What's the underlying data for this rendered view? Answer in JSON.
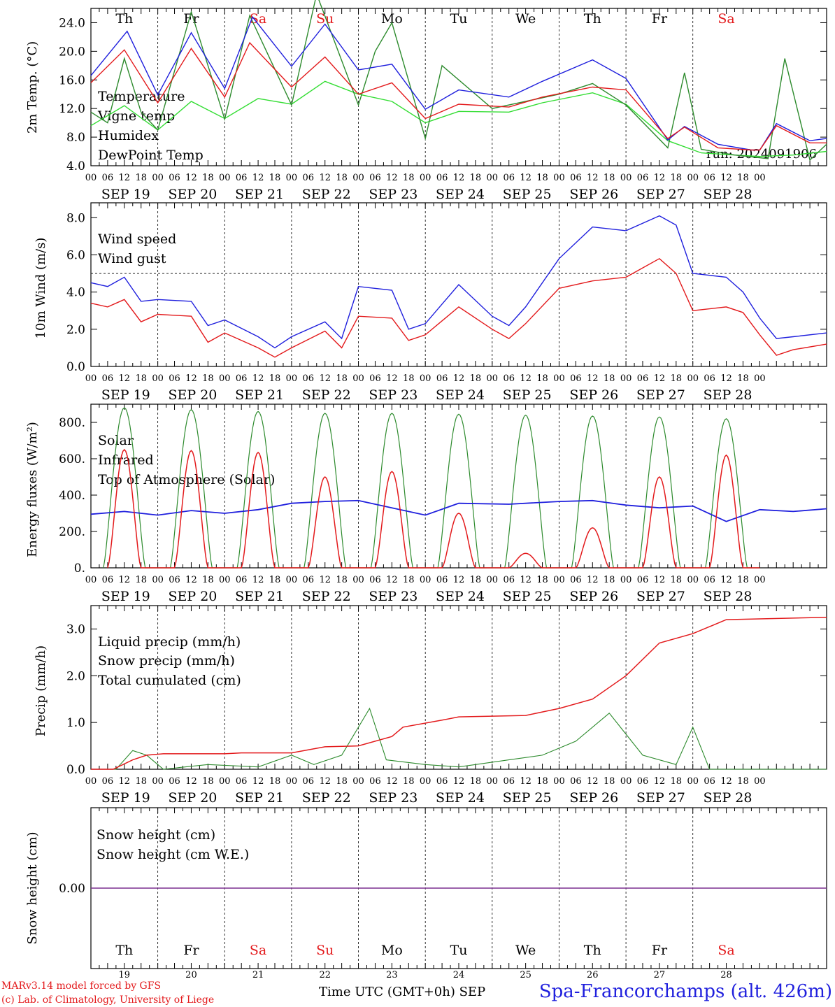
{
  "days": [
    {
      "abbr": "Th",
      "date": "SEP 19",
      "num": "19",
      "weekend": false
    },
    {
      "abbr": "Fr",
      "date": "SEP 20",
      "num": "20",
      "weekend": false
    },
    {
      "abbr": "Sa",
      "date": "SEP 21",
      "num": "21",
      "weekend": true
    },
    {
      "abbr": "Su",
      "date": "SEP 22",
      "num": "22",
      "weekend": true
    },
    {
      "abbr": "Mo",
      "date": "SEP 23",
      "num": "23",
      "weekend": false
    },
    {
      "abbr": "Tu",
      "date": "SEP 24",
      "num": "24",
      "weekend": false
    },
    {
      "abbr": "We",
      "date": "SEP 25",
      "num": "25",
      "weekend": false
    },
    {
      "abbr": "Th",
      "date": "SEP 26",
      "num": "26",
      "weekend": false
    },
    {
      "abbr": "Fr",
      "date": "SEP 27",
      "num": "27",
      "weekend": false
    },
    {
      "abbr": "Sa",
      "date": "SEP 28",
      "num": "28",
      "weekend": true
    }
  ],
  "hour_labels": [
    "00",
    "06",
    "12",
    "18"
  ],
  "colors": {
    "red": "#e31a1c",
    "darkgreen": "#2e8b2e",
    "blue": "#1f1fdd",
    "lightgreen": "#33dd33",
    "snow": "#7a2f8f"
  },
  "footer": {
    "credit_line1": "MARv3.14 model forced by GFS",
    "credit_line2": "(c) Lab. of Climatology, University of Liege",
    "time_label": "Time UTC (GMT+0h) SEP",
    "station": "Spa-Francorchamps (alt. 426m)"
  },
  "chart_data": [
    {
      "type": "line",
      "ylabel": "2m Temp. (°C)",
      "yticks": [
        "4.0",
        "8.0",
        "12.0",
        "16.0",
        "20.0",
        "24.0"
      ],
      "ylim": [
        4,
        26
      ],
      "run_label": "run: 2024091906",
      "legend": [
        "Temperature",
        "Vigne temp",
        "Humidex",
        "DewPoint Temp"
      ],
      "series": [
        {
          "name": "Temperature",
          "color": "red",
          "points": [
            [
              0,
              15.6
            ],
            [
              12,
              20.2
            ],
            [
              24,
              12.8
            ],
            [
              36,
              20.4
            ],
            [
              48,
              13.6
            ],
            [
              57,
              21.2
            ],
            [
              72,
              15.0
            ],
            [
              84,
              19.2
            ],
            [
              96,
              14.0
            ],
            [
              108,
              15.6
            ],
            [
              120,
              10.6
            ],
            [
              132,
              12.6
            ],
            [
              150,
              12.2
            ],
            [
              162,
              13.6
            ],
            [
              180,
              15.0
            ],
            [
              192,
              14.6
            ],
            [
              207,
              7.8
            ],
            [
              213,
              9.4
            ],
            [
              225,
              6.5
            ],
            [
              237,
              6.2
            ],
            [
              240,
              6.2
            ],
            [
              246,
              9.6
            ],
            [
              258,
              7.2
            ],
            [
              264,
              7.2
            ]
          ]
        },
        {
          "name": "Vigne temp",
          "color": "darkgreen",
          "points": [
            [
              0,
              11.5
            ],
            [
              6,
              10.0
            ],
            [
              12,
              19.0
            ],
            [
              18,
              11.5
            ],
            [
              24,
              9.0
            ],
            [
              36,
              25.5
            ],
            [
              48,
              10.5
            ],
            [
              57,
              25.0
            ],
            [
              72,
              12.5
            ],
            [
              81,
              28.0
            ],
            [
              96,
              12.5
            ],
            [
              102,
              20.0
            ],
            [
              108,
              24.0
            ],
            [
              120,
              7.8
            ],
            [
              126,
              18.0
            ],
            [
              144,
              12.0
            ],
            [
              168,
              14.0
            ],
            [
              180,
              15.5
            ],
            [
              192,
              12.5
            ],
            [
              207,
              6.5
            ],
            [
              213,
              17.0
            ],
            [
              219,
              6.3
            ],
            [
              231,
              5.5
            ],
            [
              243,
              5.0
            ],
            [
              249,
              19.0
            ],
            [
              258,
              4.8
            ],
            [
              264,
              7.0
            ]
          ]
        },
        {
          "name": "Humidex",
          "color": "blue",
          "points": [
            [
              0,
              16.6
            ],
            [
              13,
              22.8
            ],
            [
              24,
              13.9
            ],
            [
              36,
              22.6
            ],
            [
              48,
              14.8
            ],
            [
              58,
              24.8
            ],
            [
              72,
              17.9
            ],
            [
              84,
              23.8
            ],
            [
              96,
              17.4
            ],
            [
              108,
              18.2
            ],
            [
              120,
              11.9
            ],
            [
              132,
              14.6
            ],
            [
              150,
              13.6
            ],
            [
              162,
              15.8
            ],
            [
              180,
              18.8
            ],
            [
              192,
              16.2
            ],
            [
              207,
              7.6
            ],
            [
              213,
              9.5
            ],
            [
              225,
              7.0
            ],
            [
              237,
              6.2
            ],
            [
              240,
              6.2
            ],
            [
              246,
              9.9
            ],
            [
              258,
              7.5
            ],
            [
              264,
              7.8
            ]
          ]
        },
        {
          "name": "DewPoint Temp",
          "color": "lightgreen",
          "points": [
            [
              0,
              9.6
            ],
            [
              12,
              12.4
            ],
            [
              24,
              9.0
            ],
            [
              36,
              13.0
            ],
            [
              48,
              10.6
            ],
            [
              60,
              13.4
            ],
            [
              72,
              12.6
            ],
            [
              84,
              15.8
            ],
            [
              96,
              14.0
            ],
            [
              108,
              13.0
            ],
            [
              120,
              10.0
            ],
            [
              132,
              11.6
            ],
            [
              150,
              11.5
            ],
            [
              162,
              12.8
            ],
            [
              180,
              14.2
            ],
            [
              192,
              12.6
            ],
            [
              207,
              7.5
            ],
            [
              219,
              5.8
            ],
            [
              231,
              5.5
            ],
            [
              240,
              5.3
            ],
            [
              252,
              5.5
            ],
            [
              264,
              6.0
            ]
          ]
        }
      ]
    },
    {
      "type": "line",
      "ylabel": "10m Wind (m/s)",
      "yticks": [
        "0.0",
        "2.0",
        "4.0",
        "6.0",
        "8.0"
      ],
      "ylim": [
        0,
        8.8
      ],
      "reference_line": 5.0,
      "legend": [
        "Wind speed",
        "Wind gust"
      ],
      "series": [
        {
          "name": "Wind speed",
          "color": "red",
          "points": [
            [
              0,
              3.4
            ],
            [
              6,
              3.2
            ],
            [
              12,
              3.6
            ],
            [
              18,
              2.4
            ],
            [
              24,
              2.8
            ],
            [
              36,
              2.7
            ],
            [
              42,
              1.3
            ],
            [
              48,
              1.8
            ],
            [
              60,
              1.0
            ],
            [
              66,
              0.5
            ],
            [
              72,
              1.0
            ],
            [
              84,
              1.9
            ],
            [
              90,
              1.0
            ],
            [
              96,
              2.7
            ],
            [
              108,
              2.6
            ],
            [
              114,
              1.4
            ],
            [
              120,
              1.7
            ],
            [
              132,
              3.2
            ],
            [
              144,
              2.0
            ],
            [
              150,
              1.5
            ],
            [
              156,
              2.3
            ],
            [
              168,
              4.2
            ],
            [
              180,
              4.6
            ],
            [
              192,
              4.8
            ],
            [
              204,
              5.8
            ],
            [
              210,
              5.0
            ],
            [
              216,
              3.0
            ],
            [
              228,
              3.2
            ],
            [
              234,
              2.9
            ],
            [
              240,
              1.7
            ],
            [
              246,
              0.6
            ],
            [
              252,
              0.9
            ],
            [
              264,
              1.2
            ]
          ]
        },
        {
          "name": "Wind gust",
          "color": "blue",
          "points": [
            [
              0,
              4.5
            ],
            [
              6,
              4.3
            ],
            [
              12,
              4.8
            ],
            [
              18,
              3.5
            ],
            [
              24,
              3.6
            ],
            [
              36,
              3.5
            ],
            [
              42,
              2.2
            ],
            [
              48,
              2.5
            ],
            [
              60,
              1.6
            ],
            [
              66,
              1.0
            ],
            [
              72,
              1.6
            ],
            [
              84,
              2.4
            ],
            [
              90,
              1.5
            ],
            [
              96,
              4.3
            ],
            [
              108,
              4.1
            ],
            [
              114,
              2.0
            ],
            [
              120,
              2.3
            ],
            [
              132,
              4.4
            ],
            [
              144,
              2.7
            ],
            [
              150,
              2.2
            ],
            [
              156,
              3.2
            ],
            [
              168,
              5.8
            ],
            [
              180,
              7.5
            ],
            [
              192,
              7.3
            ],
            [
              204,
              8.1
            ],
            [
              210,
              7.6
            ],
            [
              216,
              5.0
            ],
            [
              228,
              4.8
            ],
            [
              234,
              4.0
            ],
            [
              240,
              2.6
            ],
            [
              246,
              1.5
            ],
            [
              252,
              1.6
            ],
            [
              264,
              1.8
            ]
          ]
        }
      ]
    },
    {
      "type": "line",
      "ylabel": "Energy fluxes (W/m²)",
      "yticks": [
        "0.",
        "200.",
        "400.",
        "600.",
        "800."
      ],
      "ylim": [
        0,
        900
      ],
      "legend": [
        "Solar",
        "Infrared",
        "Top of Atmosphere (Solar)"
      ],
      "toa_peaks": [
        880,
        870,
        860,
        850,
        850,
        845,
        840,
        835,
        830,
        820
      ],
      "solar_peaks": [
        650,
        645,
        635,
        500,
        530,
        300,
        80,
        220,
        500,
        620
      ],
      "infrared": [
        [
          0,
          295
        ],
        [
          12,
          310
        ],
        [
          24,
          290
        ],
        [
          36,
          315
        ],
        [
          48,
          300
        ],
        [
          60,
          320
        ],
        [
          72,
          355
        ],
        [
          84,
          365
        ],
        [
          96,
          370
        ],
        [
          108,
          330
        ],
        [
          120,
          290
        ],
        [
          132,
          355
        ],
        [
          150,
          350
        ],
        [
          168,
          365
        ],
        [
          180,
          370
        ],
        [
          192,
          345
        ],
        [
          204,
          330
        ],
        [
          216,
          340
        ],
        [
          228,
          255
        ],
        [
          240,
          320
        ],
        [
          252,
          310
        ],
        [
          264,
          325
        ]
      ]
    },
    {
      "type": "line",
      "ylabel": "Precip (mm/h)",
      "yticks": [
        "0.0",
        "1.0",
        "2.0",
        "3.0"
      ],
      "ylim": [
        0,
        3.5
      ],
      "legend": [
        "Liquid precip (mm/h)",
        "Snow precip (mm/h)",
        "Total cumulated (cm)"
      ],
      "series": [
        {
          "name": "Liquid precip (mm/h)",
          "color": "darkgreen",
          "points": [
            [
              0,
              0
            ],
            [
              9,
              0
            ],
            [
              15,
              0.4
            ],
            [
              20,
              0.3
            ],
            [
              26,
              0
            ],
            [
              42,
              0.1
            ],
            [
              60,
              0.05
            ],
            [
              72,
              0.3
            ],
            [
              80,
              0.1
            ],
            [
              90,
              0.3
            ],
            [
              100,
              1.3
            ],
            [
              106,
              0.2
            ],
            [
              120,
              0.1
            ],
            [
              132,
              0.05
            ],
            [
              150,
              0.2
            ],
            [
              162,
              0.3
            ],
            [
              174,
              0.6
            ],
            [
              186,
              1.2
            ],
            [
              198,
              0.3
            ],
            [
              210,
              0.1
            ],
            [
              216,
              0.9
            ],
            [
              222,
              0
            ],
            [
              264,
              0
            ]
          ]
        },
        {
          "name": "Total cumulated (cm)",
          "color": "red",
          "points": [
            [
              0,
              0
            ],
            [
              8,
              0
            ],
            [
              15,
              0.2
            ],
            [
              20,
              0.3
            ],
            [
              26,
              0.33
            ],
            [
              48,
              0.33
            ],
            [
              54,
              0.35
            ],
            [
              72,
              0.35
            ],
            [
              84,
              0.48
            ],
            [
              96,
              0.5
            ],
            [
              108,
              0.7
            ],
            [
              112,
              0.9
            ],
            [
              126,
              1.05
            ],
            [
              132,
              1.12
            ],
            [
              156,
              1.15
            ],
            [
              168,
              1.3
            ],
            [
              180,
              1.5
            ],
            [
              192,
              2.0
            ],
            [
              204,
              2.7
            ],
            [
              216,
              2.9
            ],
            [
              228,
              3.2
            ],
            [
              264,
              3.25
            ]
          ]
        }
      ]
    },
    {
      "type": "line",
      "ylabel": "Snow height (cm)",
      "yticks": [
        "0.00"
      ],
      "legend": [
        "Snow height (cm)",
        "Snow height (cm W.E.)"
      ],
      "series": [
        {
          "name": "Snow height (cm)",
          "color": "red",
          "values": [
            0,
            0
          ]
        },
        {
          "name": "Snow height (cm W.E.)",
          "color": "blue",
          "values": [
            0,
            0
          ]
        }
      ]
    }
  ]
}
